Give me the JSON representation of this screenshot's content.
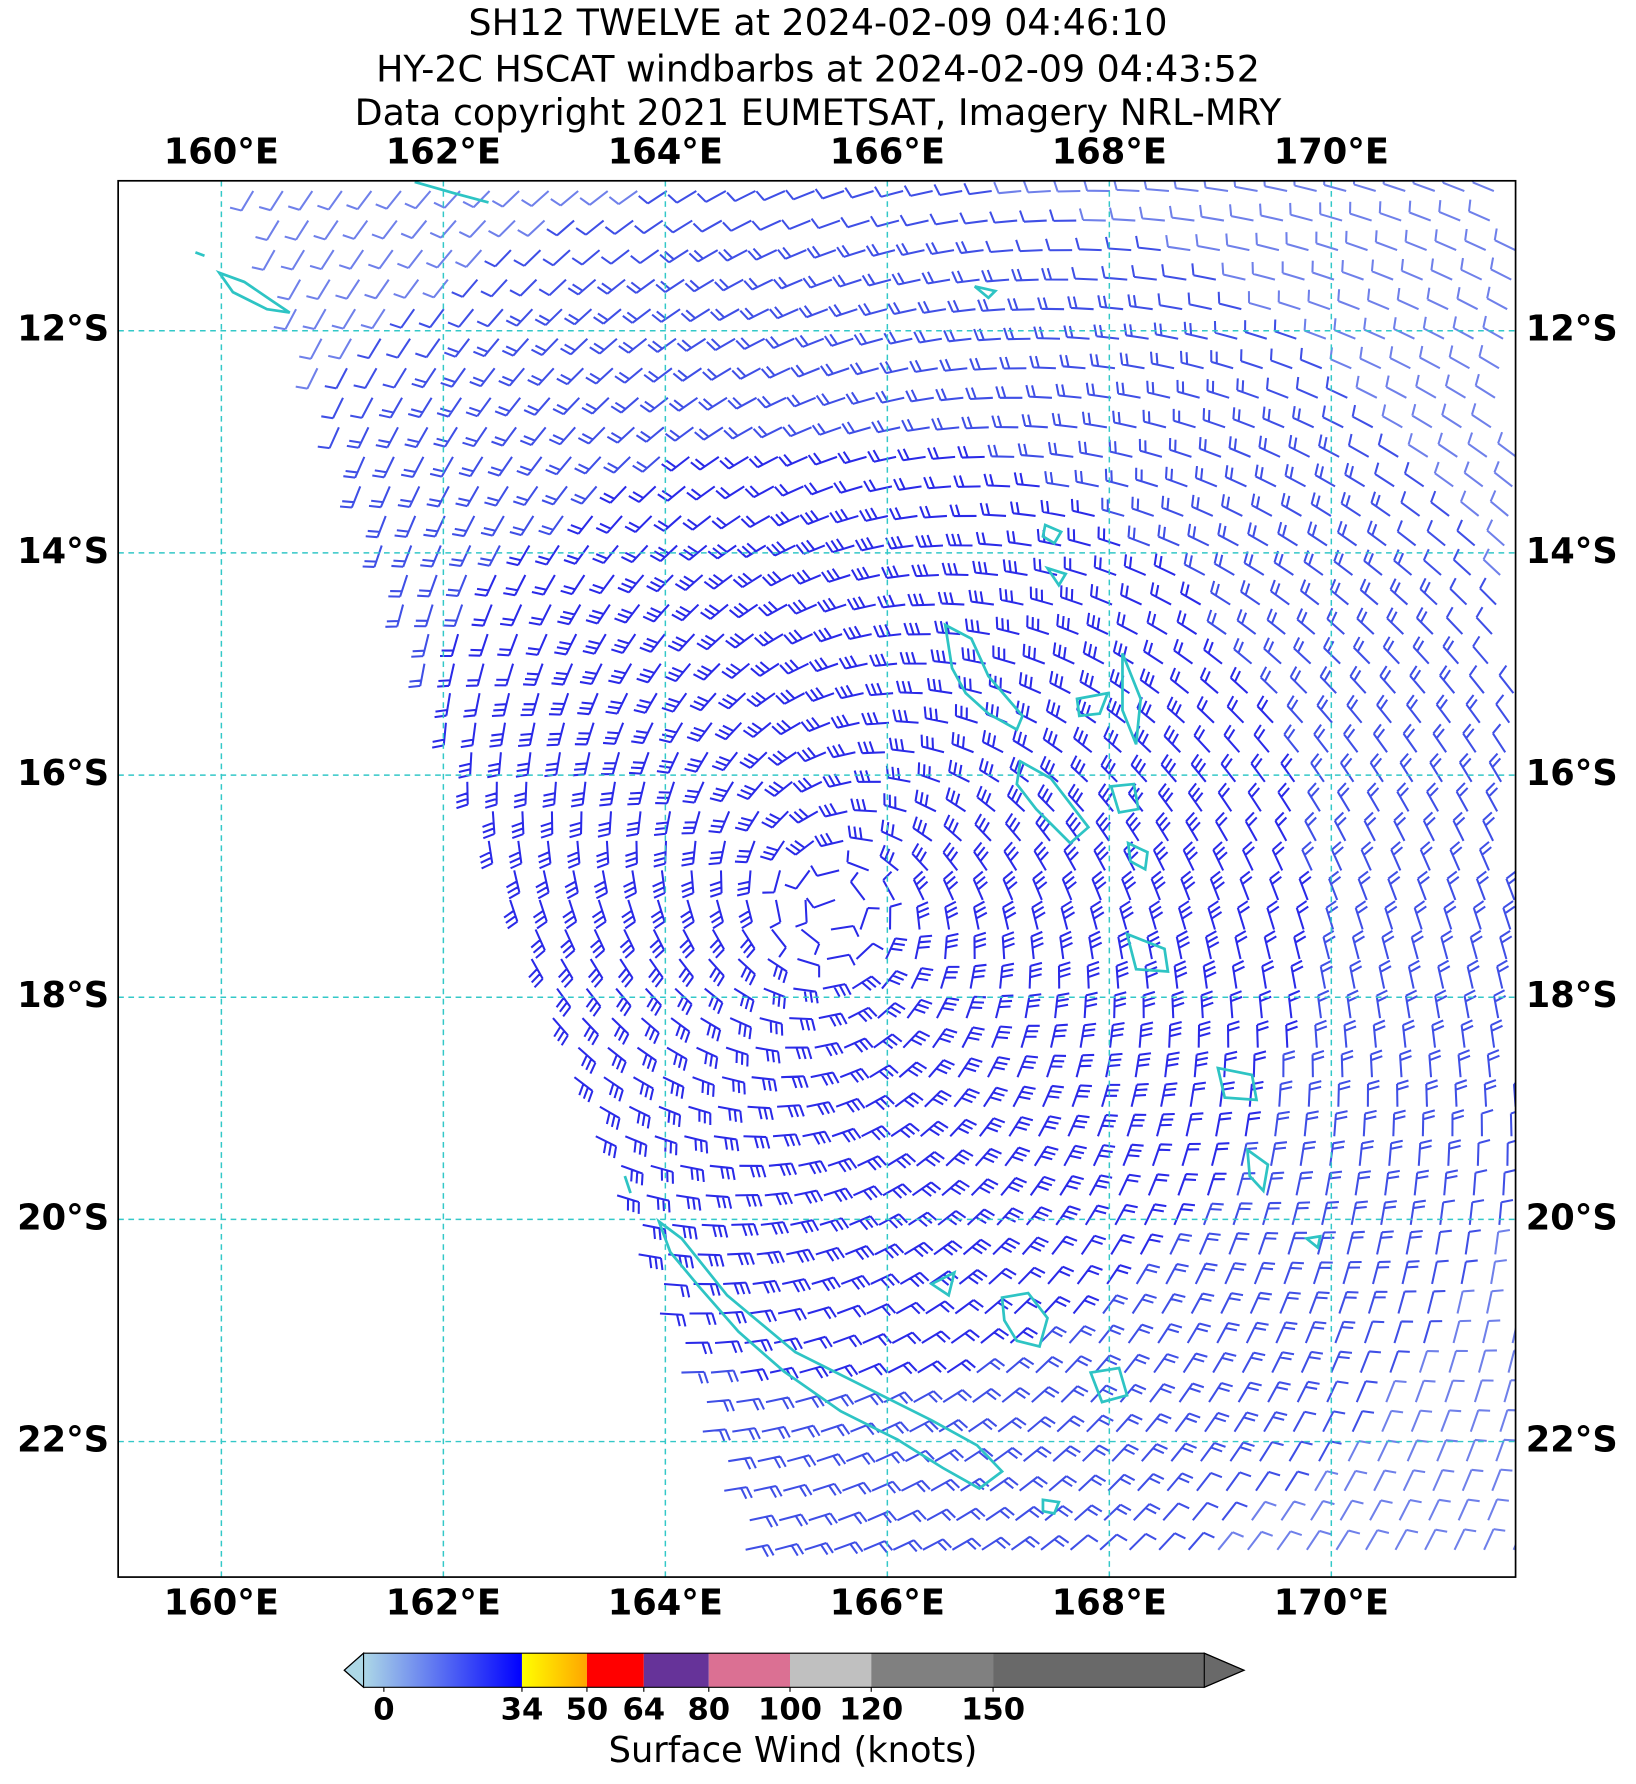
{
  "title": [
    "SH12 TWELVE at 2024-02-09 04:46:10",
    "HY-2C HSCAT windbarbs at 2024-02-09 04:43:52",
    "Data copyright 2021 EUMETSAT, Imagery NRL-MRY"
  ],
  "map": {
    "xlim": [
      159.07,
      171.66
    ],
    "ylim": [
      -23.22,
      -10.65
    ],
    "grid": true,
    "xticks": [
      {
        "value": 160,
        "label": "160°E"
      },
      {
        "value": 162,
        "label": "162°E"
      },
      {
        "value": 164,
        "label": "164°E"
      },
      {
        "value": 166,
        "label": "166°E"
      },
      {
        "value": 168,
        "label": "168°E"
      },
      {
        "value": 170,
        "label": "170°E"
      }
    ],
    "yticks": [
      {
        "value": -12,
        "label": "12°S"
      },
      {
        "value": -14,
        "label": "14°S"
      },
      {
        "value": -16,
        "label": "16°S"
      },
      {
        "value": -18,
        "label": "18°S"
      },
      {
        "value": -20,
        "label": "20°S"
      },
      {
        "value": -22,
        "label": "22°S"
      }
    ]
  },
  "colorbar": {
    "label": "Surface Wind (knots)",
    "lim": [
      -5,
      202
    ],
    "ticks": [
      0,
      34,
      50,
      64,
      80,
      100,
      120,
      150
    ],
    "colors": [
      [
        "#add8e6",
        "#0000ff"
      ],
      [
        "#ffff00",
        "#ffa500"
      ],
      [
        "#ff0000",
        "#ff0000"
      ],
      [
        "#663399",
        "#663399"
      ],
      [
        "#db7093",
        "#db7093"
      ],
      [
        "#c0c0c0",
        "#c0c0c0"
      ],
      [
        "#808080",
        "#808080"
      ],
      [
        "#696969",
        "#696969"
      ]
    ]
  }
}
